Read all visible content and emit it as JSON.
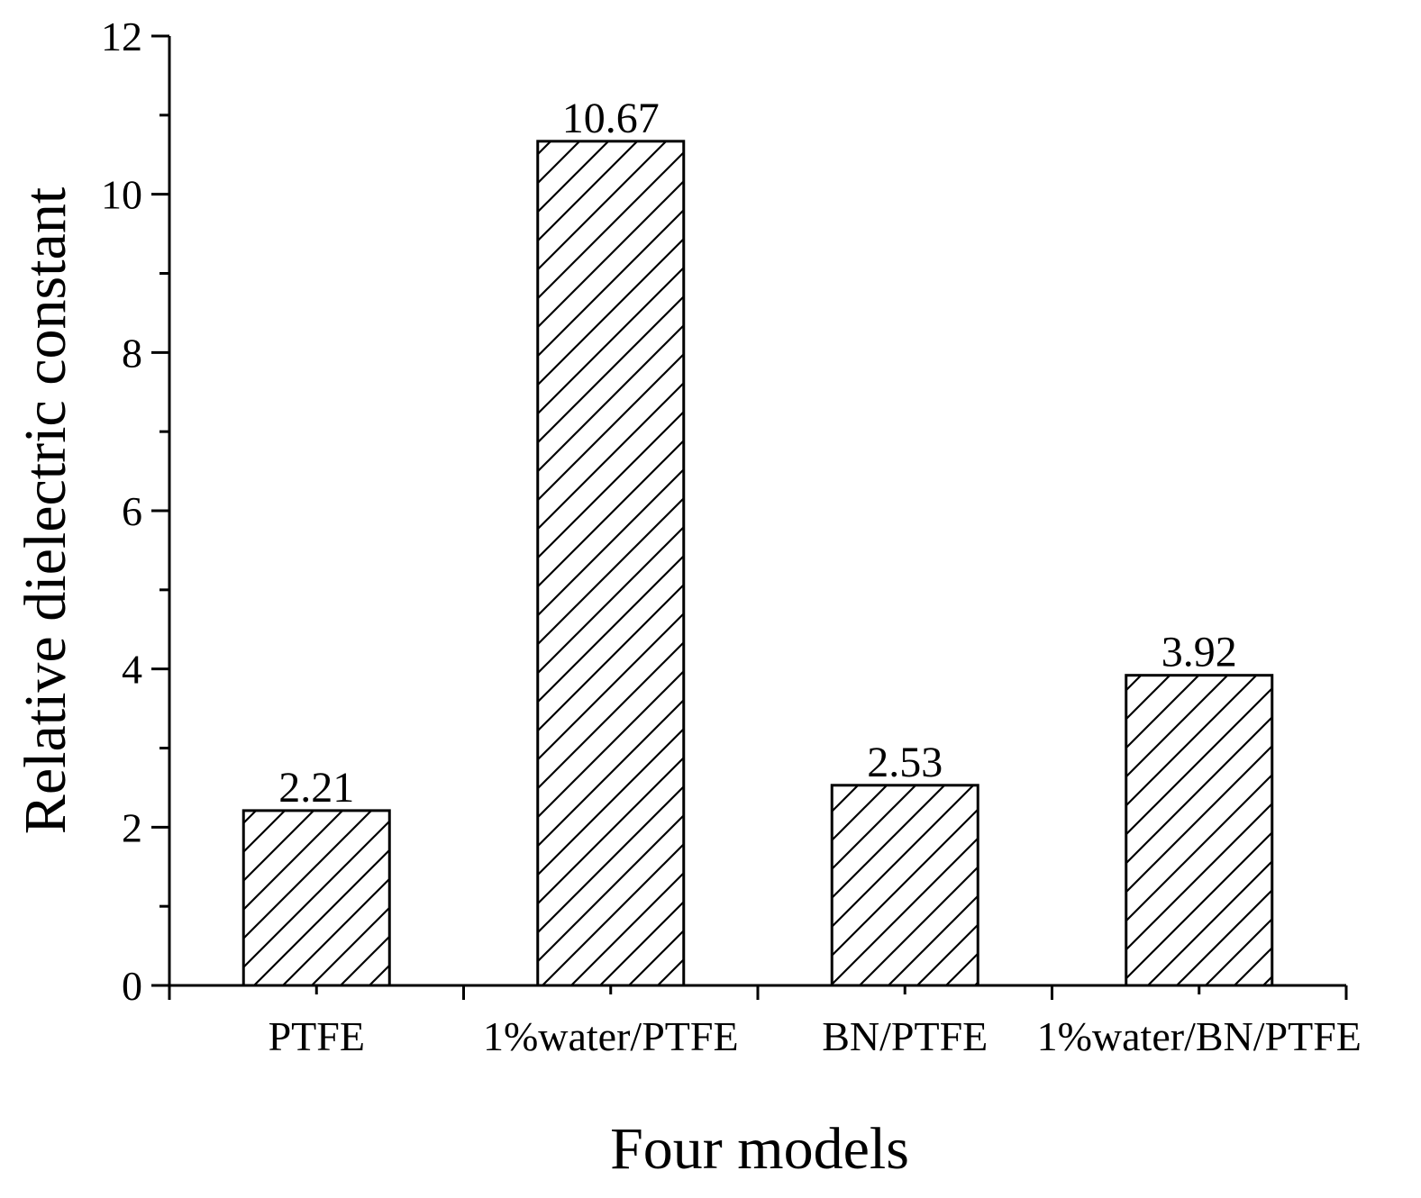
{
  "chart_data": {
    "type": "bar",
    "title": "",
    "xlabel": "Four models",
    "ylabel": "Relative dielectric constant",
    "categories": [
      "PTFE",
      "1%water/PTFE",
      "BN/PTFE",
      "1%water/BN/PTFE"
    ],
    "values": [
      2.21,
      10.67,
      2.53,
      3.92
    ],
    "data_labels": [
      "2.21",
      "10.67",
      "2.53",
      "3.92"
    ],
    "ylim": [
      0,
      12
    ],
    "yticks": [
      "0",
      "2",
      "4",
      "6",
      "8",
      "10",
      "12"
    ],
    "grid": false,
    "legend": "none",
    "bar_fill": "hatched",
    "colors": {
      "bar_stroke": "#000000",
      "hatch": "#000000",
      "background": "#ffffff"
    }
  }
}
